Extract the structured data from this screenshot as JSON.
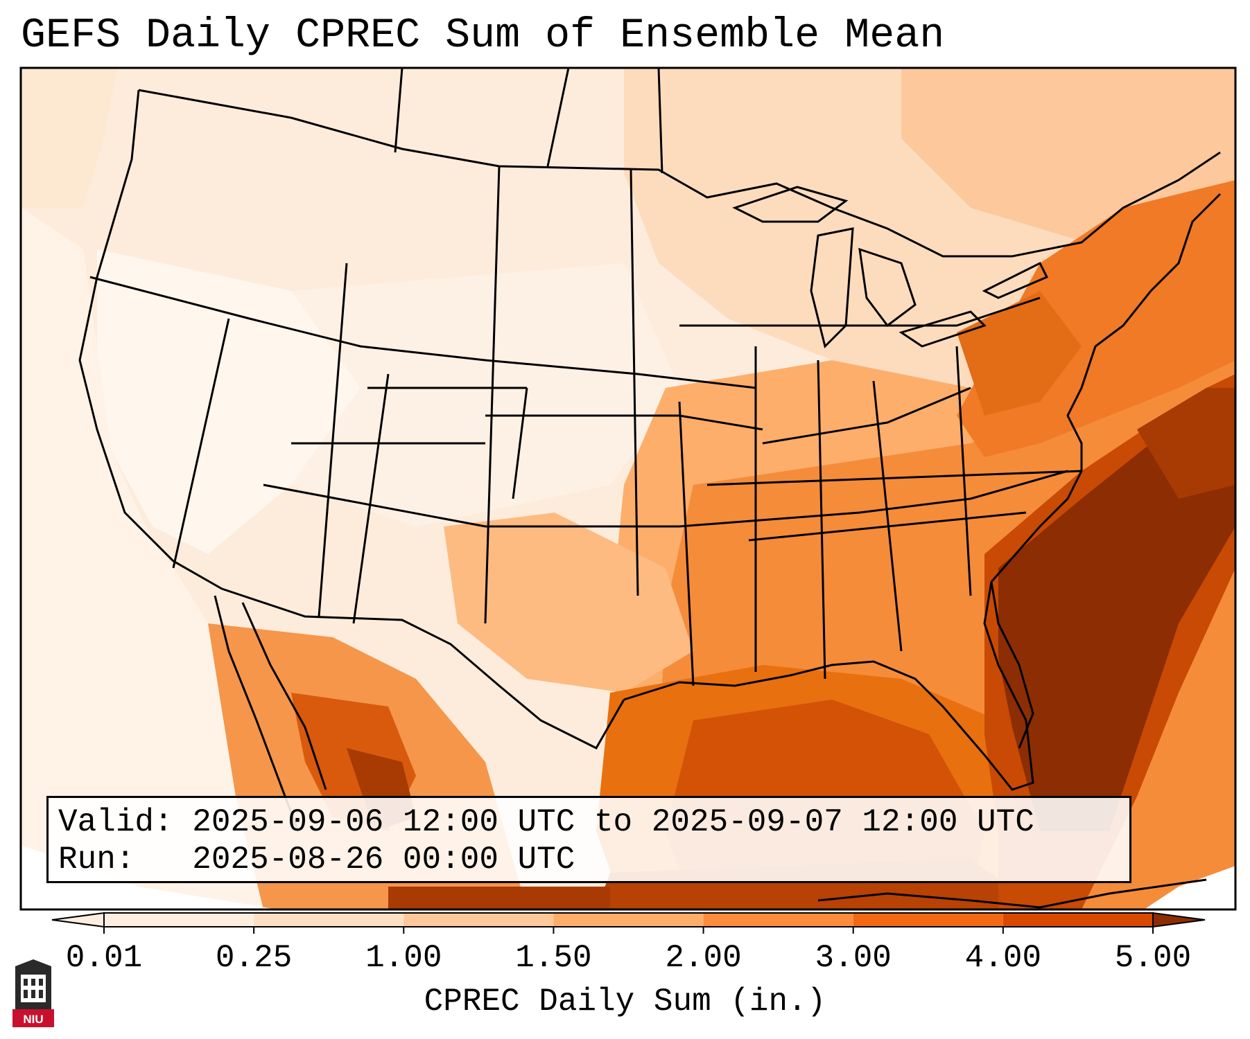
{
  "title": "GEFS Daily CPREC Sum of Ensemble Mean",
  "info": {
    "valid_label": "Valid:",
    "valid_value": "2025-09-06 12:00 UTC to 2025-09-07 12:00 UTC",
    "run_label": "Run:",
    "run_value": "2025-08-26 00:00 UTC"
  },
  "colorbar": {
    "label": "CPREC Daily Sum (in.)",
    "ticks": [
      "0.01",
      "0.25",
      "1.00",
      "1.50",
      "2.00",
      "3.00",
      "4.00",
      "5.00"
    ],
    "colors": [
      "#fdeee0",
      "#fde0c4",
      "#fdc89a",
      "#fdae6b",
      "#fd8d3c",
      "#f16913",
      "#d94801",
      "#8c2d04"
    ],
    "extend": "both"
  },
  "logo": {
    "text": "NIU"
  },
  "colors": {
    "frame": "#000000",
    "very_light": "#fff4ea",
    "light": "#fde6cf",
    "medium_light": "#fdc89a",
    "medium": "#fdae6b",
    "orange": "#f58c3a",
    "dark_orange": "#e06510",
    "deep": "#c84a04",
    "darkest": "#8c2d04",
    "ocean_white": "#fffaf6"
  }
}
